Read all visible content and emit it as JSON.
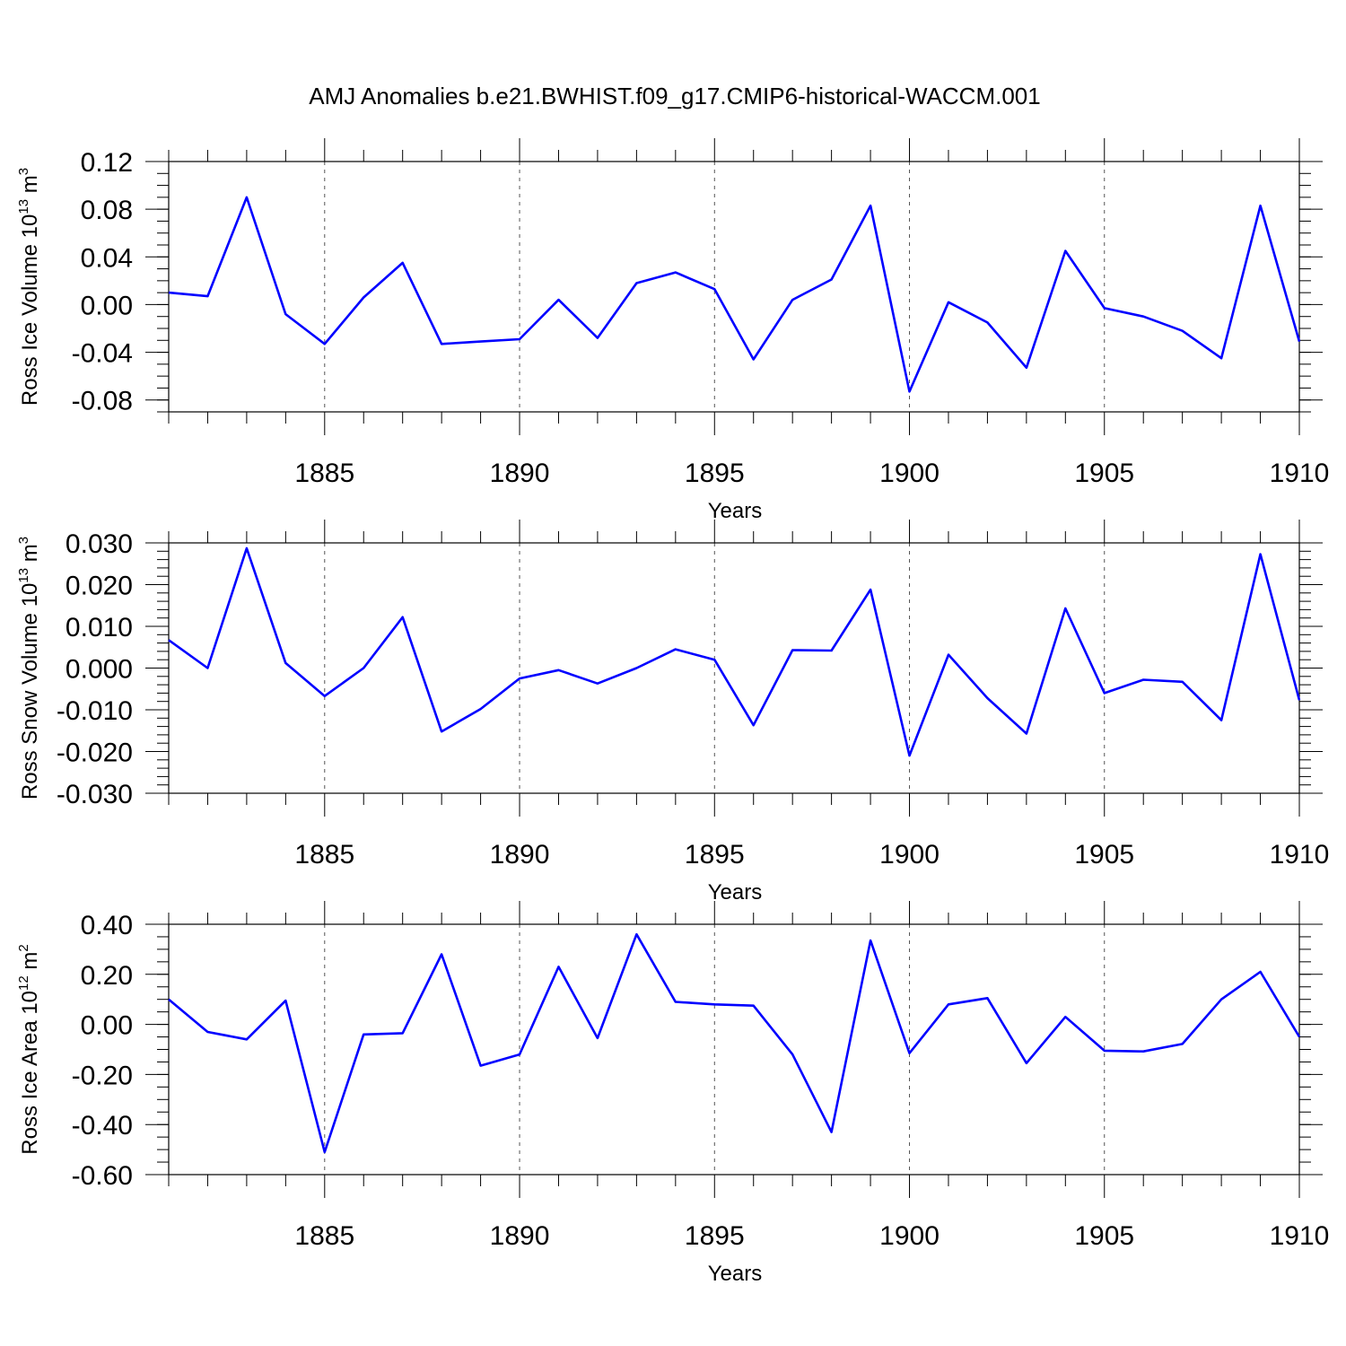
{
  "title": "AMJ Anomalies b.e21.BWHIST.f09_g17.CMIP6-historical-WACCM.001",
  "line_color": "#0000ff",
  "chart_data": [
    {
      "type": "line",
      "ylabel": {
        "text": "Ross Ice Volume 10",
        "sup": "13",
        "unit": " m",
        "unit_sup": "3"
      },
      "xlabel": "Years",
      "xlim": [
        1881,
        1910
      ],
      "ylim": [
        -0.09,
        0.12
      ],
      "yticks": [
        0.12,
        0.08,
        0.04,
        0.0,
        -0.04,
        -0.08
      ],
      "ytick_labels": [
        "0.12",
        "0.08",
        "0.04",
        "0.00",
        "-0.04",
        "-0.08"
      ],
      "ytick_minor": 0.01,
      "xticks": [
        1885,
        1890,
        1895,
        1900,
        1905,
        1910
      ],
      "xtick_labels": [
        "1885",
        "1890",
        "1895",
        "1900",
        "1905",
        "1910"
      ],
      "grid": "x-major dashed",
      "x": [
        1881,
        1882,
        1883,
        1884,
        1885,
        1886,
        1887,
        1888,
        1889,
        1890,
        1891,
        1892,
        1893,
        1894,
        1895,
        1896,
        1897,
        1898,
        1899,
        1900,
        1901,
        1902,
        1903,
        1904,
        1905,
        1906,
        1907,
        1908,
        1909,
        1910
      ],
      "values": [
        0.01,
        0.007,
        0.09,
        -0.008,
        -0.033,
        0.006,
        0.035,
        -0.033,
        -0.031,
        -0.029,
        0.004,
        -0.028,
        0.018,
        0.027,
        0.013,
        -0.046,
        0.004,
        0.021,
        0.083,
        -0.073,
        0.002,
        -0.015,
        -0.053,
        0.045,
        -0.003,
        -0.01,
        -0.022,
        -0.045,
        0.083,
        -0.031
      ]
    },
    {
      "type": "line",
      "ylabel": {
        "text": "Ross Snow Volume 10",
        "sup": "13",
        "unit": " m",
        "unit_sup": "3"
      },
      "xlabel": "Years",
      "xlim": [
        1881,
        1910
      ],
      "ylim": [
        -0.03,
        0.03
      ],
      "yticks": [
        0.03,
        0.02,
        0.01,
        0.0,
        -0.01,
        -0.02,
        -0.03
      ],
      "ytick_labels": [
        "0.030",
        "0.020",
        "0.010",
        "0.000",
        "-0.010",
        "-0.020",
        "-0.030"
      ],
      "ytick_minor": 0.002,
      "xticks": [
        1885,
        1890,
        1895,
        1900,
        1905,
        1910
      ],
      "xtick_labels": [
        "1885",
        "1890",
        "1895",
        "1900",
        "1905",
        "1910"
      ],
      "grid": "x-major dashed",
      "x": [
        1881,
        1882,
        1883,
        1884,
        1885,
        1886,
        1887,
        1888,
        1889,
        1890,
        1891,
        1892,
        1893,
        1894,
        1895,
        1896,
        1897,
        1898,
        1899,
        1900,
        1901,
        1902,
        1903,
        1904,
        1905,
        1906,
        1907,
        1908,
        1909,
        1910
      ],
      "values": [
        0.0067,
        0.0,
        0.0287,
        0.0012,
        -0.0067,
        0.0,
        0.0122,
        -0.0152,
        -0.0098,
        -0.0025,
        -0.0005,
        -0.0037,
        0.0,
        0.0045,
        0.002,
        -0.0137,
        0.0043,
        0.0042,
        0.0188,
        -0.021,
        0.0032,
        -0.0072,
        -0.0157,
        0.0143,
        -0.006,
        -0.0028,
        -0.0033,
        -0.0125,
        0.0273,
        -0.0077
      ]
    },
    {
      "type": "line",
      "ylabel": {
        "text": "Ross Ice Area 10",
        "sup": "12",
        "unit": " m",
        "unit_sup": "2"
      },
      "xlabel": "Years",
      "xlim": [
        1881,
        1910
      ],
      "ylim": [
        -0.6,
        0.4
      ],
      "yticks": [
        0.4,
        0.2,
        0.0,
        -0.2,
        -0.4,
        -0.6
      ],
      "ytick_labels": [
        "0.40",
        "0.20",
        "0.00",
        "-0.20",
        "-0.40",
        "-0.60"
      ],
      "ytick_minor": 0.05,
      "xticks": [
        1885,
        1890,
        1895,
        1900,
        1905,
        1910
      ],
      "xtick_labels": [
        "1885",
        "1890",
        "1895",
        "1900",
        "1905",
        "1910"
      ],
      "grid": "x-major dashed",
      "x": [
        1881,
        1882,
        1883,
        1884,
        1885,
        1886,
        1887,
        1888,
        1889,
        1890,
        1891,
        1892,
        1893,
        1894,
        1895,
        1896,
        1897,
        1898,
        1899,
        1900,
        1901,
        1902,
        1903,
        1904,
        1905,
        1906,
        1907,
        1908,
        1909,
        1910
      ],
      "values": [
        0.1,
        -0.03,
        -0.06,
        0.095,
        -0.51,
        -0.04,
        -0.035,
        0.28,
        -0.165,
        -0.12,
        0.23,
        -0.055,
        0.36,
        0.09,
        0.08,
        0.075,
        -0.12,
        -0.43,
        0.335,
        -0.115,
        0.08,
        0.105,
        -0.155,
        0.03,
        -0.105,
        -0.108,
        -0.078,
        0.1,
        0.21,
        -0.05
      ]
    }
  ]
}
